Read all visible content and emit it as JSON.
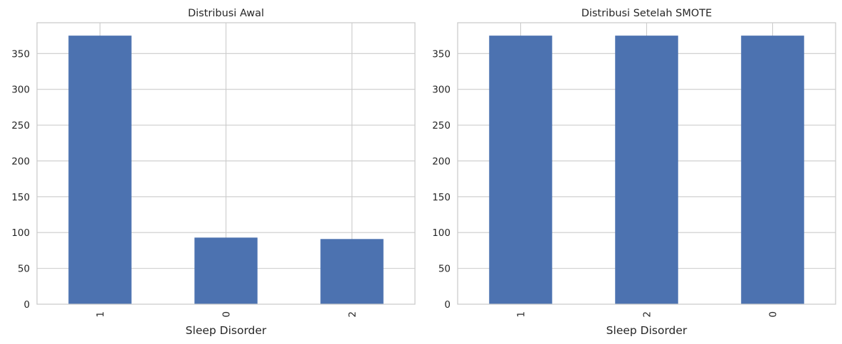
{
  "theme": {
    "bar_color": "#4c72b0",
    "grid_color": "#cccccc",
    "text_color": "#262626",
    "background": "#ffffff"
  },
  "chart_data": [
    {
      "type": "bar",
      "title": "Distribusi Awal",
      "xlabel": "Sleep Disorder",
      "ylabel": "",
      "categories": [
        "1",
        "0",
        "2"
      ],
      "values": [
        375,
        93,
        91
      ],
      "ylim": [
        0,
        393
      ],
      "yticks": [
        0,
        50,
        100,
        150,
        200,
        250,
        300,
        350
      ],
      "grid": true,
      "legend": "none"
    },
    {
      "type": "bar",
      "title": "Distribusi Setelah SMOTE",
      "xlabel": "Sleep Disorder",
      "ylabel": "",
      "categories": [
        "1",
        "2",
        "0"
      ],
      "values": [
        375,
        375,
        375
      ],
      "ylim": [
        0,
        393
      ],
      "yticks": [
        0,
        50,
        100,
        150,
        200,
        250,
        300,
        350
      ],
      "grid": true,
      "legend": "none"
    }
  ]
}
